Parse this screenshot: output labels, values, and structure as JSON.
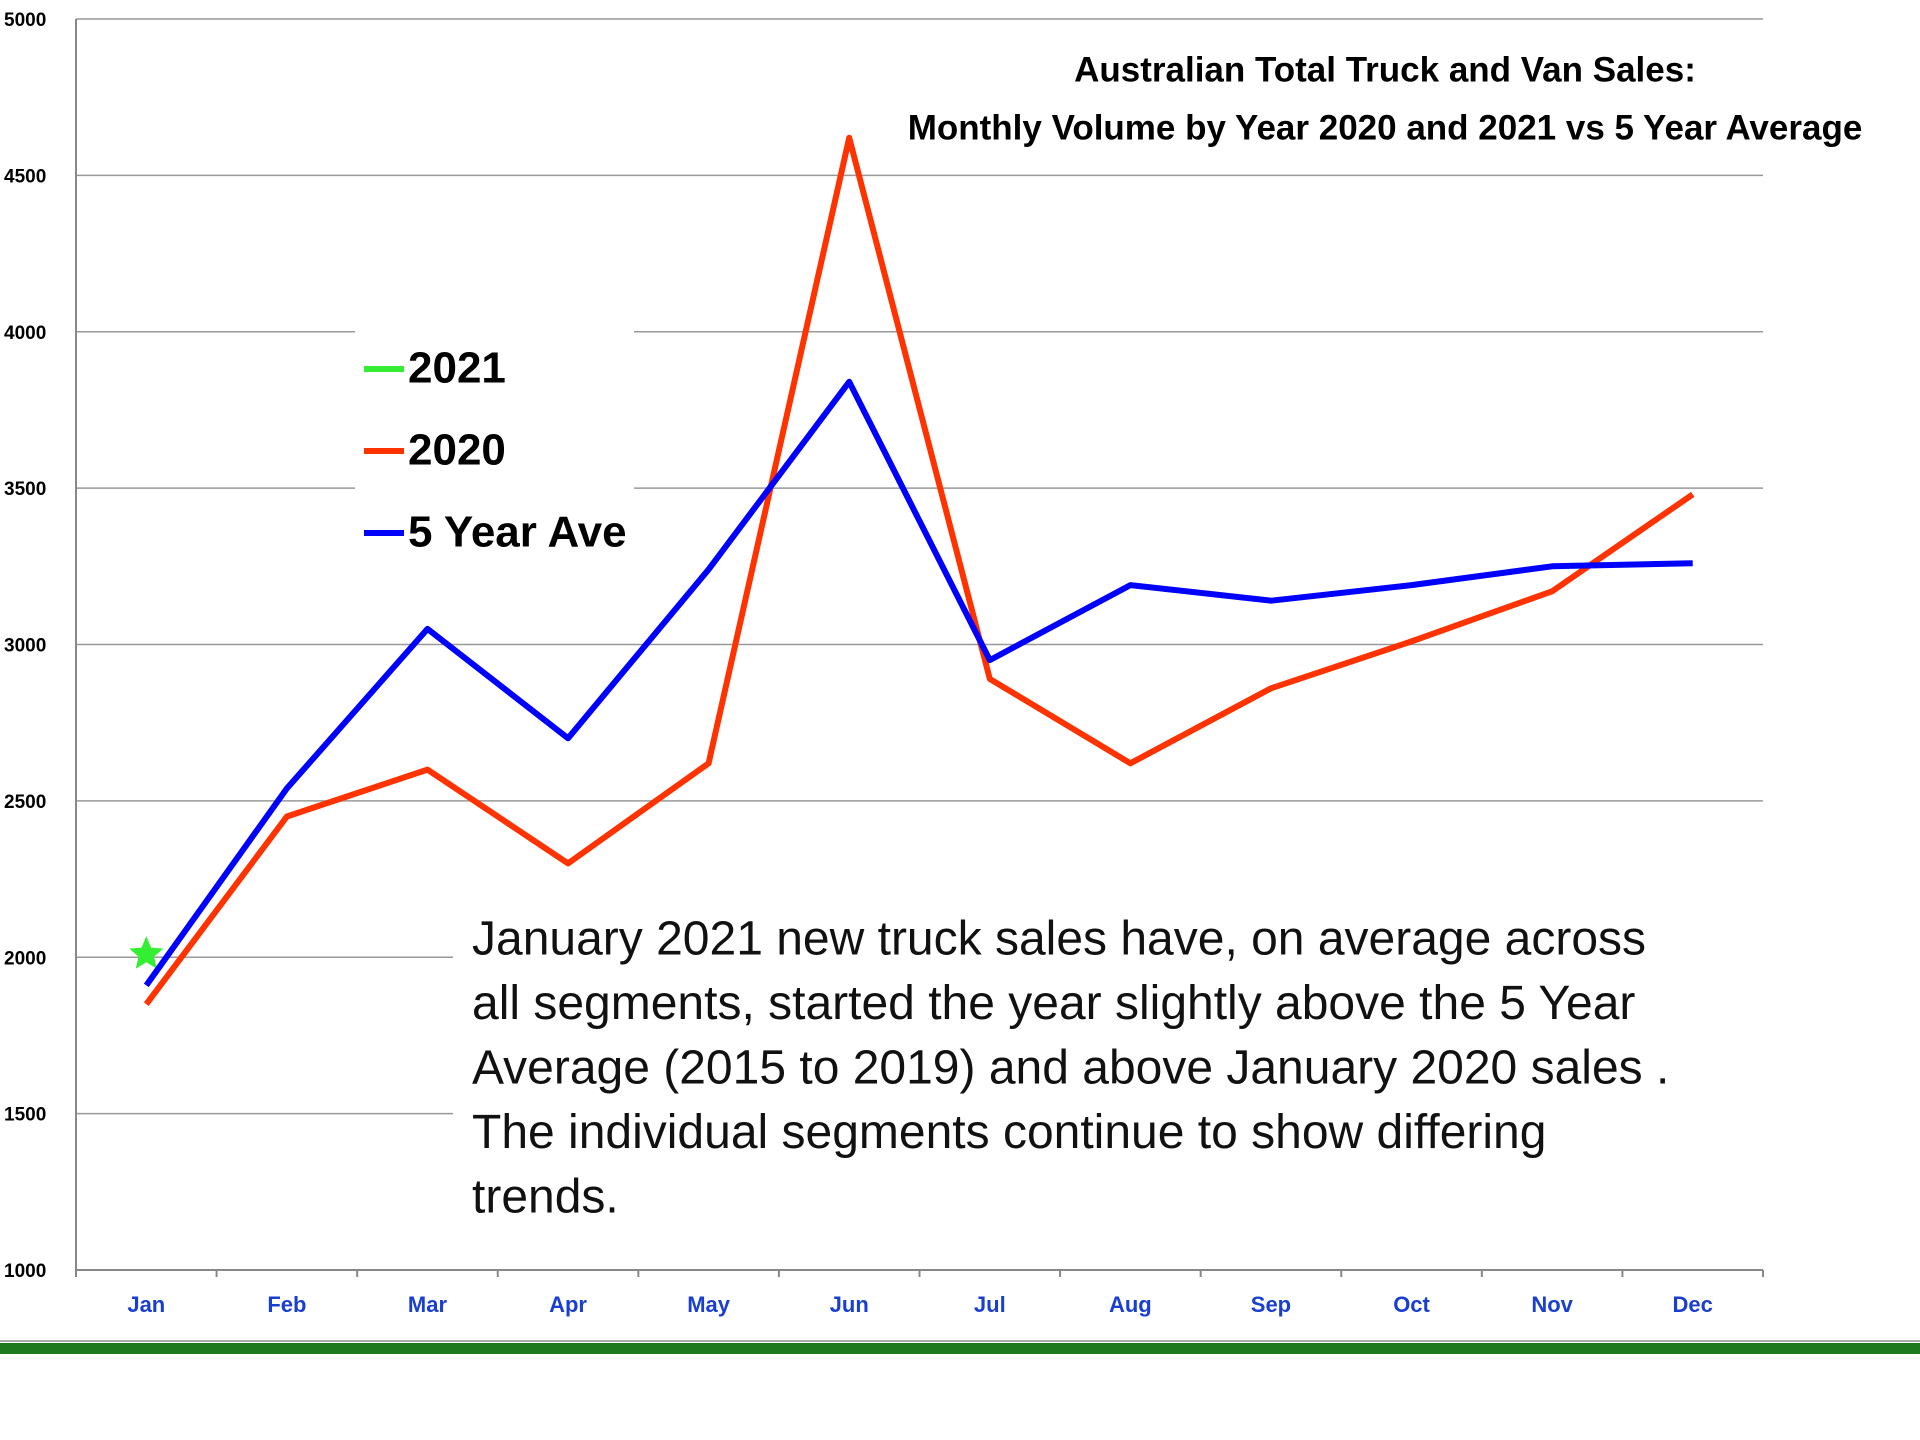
{
  "chart_data": {
    "type": "line",
    "title": [
      "Australian Total Truck and Van Sales:",
      "Monthly Volume by Year 2020 and 2021 vs 5 Year Average"
    ],
    "categories": [
      "Jan",
      "Feb",
      "Mar",
      "Apr",
      "May",
      "Jun",
      "Jul",
      "Aug",
      "Sep",
      "Oct",
      "Nov",
      "Dec"
    ],
    "series": [
      {
        "name": "2021",
        "color": "#33ee33",
        "values": [
          2010,
          null,
          null,
          null,
          null,
          null,
          null,
          null,
          null,
          null,
          null,
          null
        ]
      },
      {
        "name": "2020",
        "color": "#ff3300",
        "values": [
          1850,
          2450,
          2600,
          2300,
          2620,
          4620,
          2890,
          2620,
          2860,
          3010,
          3170,
          3480
        ]
      },
      {
        "name": "5 Year Ave",
        "color": "#0000ff",
        "values": [
          1910,
          2540,
          3050,
          2700,
          3240,
          3840,
          2950,
          3190,
          3140,
          3190,
          3250,
          3260
        ]
      }
    ],
    "ylim": [
      1000,
      5000
    ],
    "yticks": [
      1000,
      1500,
      2000,
      2500,
      3000,
      3500,
      4000,
      4500,
      5000
    ],
    "grid": true,
    "annotation": [
      "January 2021 new truck sales have, on average across",
      "all segments, started the year slightly above the 5 Year",
      "Average (2015 to 2019) and above January 2020 sales .",
      "The individual segments continue to show differing",
      "trends."
    ]
  }
}
